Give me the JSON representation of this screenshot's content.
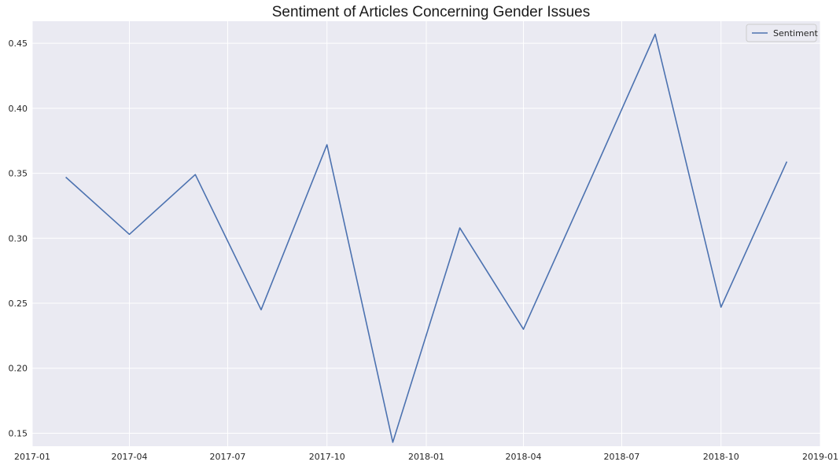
{
  "chart_data": {
    "type": "line",
    "title": "Sentiment of Articles Concerning Gender Issues",
    "xlabel": "",
    "ylabel": "",
    "x": [
      "2017-02-01",
      "2017-04-01",
      "2017-06-01",
      "2017-08-01",
      "2017-10-01",
      "2017-12-01",
      "2018-02-01",
      "2018-04-01",
      "2018-06-01",
      "2018-08-01",
      "2018-10-01",
      "2018-12-01"
    ],
    "series": [
      {
        "name": "Sentiment",
        "color": "#4c72b0",
        "values": [
          0.347,
          0.303,
          0.349,
          0.245,
          0.372,
          0.143,
          0.308,
          0.23,
          0.343,
          0.457,
          0.247,
          0.359
        ]
      }
    ],
    "xlim": [
      "2017-01-01",
      "2019-01-01"
    ],
    "ylim": [
      0.14,
      0.467
    ],
    "x_ticks": [
      {
        "date": "2017-01-01",
        "label": "2017-01"
      },
      {
        "date": "2017-04-01",
        "label": "2017-04"
      },
      {
        "date": "2017-07-01",
        "label": "2017-07"
      },
      {
        "date": "2017-10-01",
        "label": "2017-10"
      },
      {
        "date": "2018-01-01",
        "label": "2018-01"
      },
      {
        "date": "2018-04-01",
        "label": "2018-04"
      },
      {
        "date": "2018-07-01",
        "label": "2018-07"
      },
      {
        "date": "2018-10-01",
        "label": "2018-10"
      },
      {
        "date": "2019-01-01",
        "label": "2019-01"
      }
    ],
    "y_ticks": [
      {
        "value": 0.15,
        "label": "0.15"
      },
      {
        "value": 0.2,
        "label": "0.20"
      },
      {
        "value": 0.25,
        "label": "0.25"
      },
      {
        "value": 0.3,
        "label": "0.30"
      },
      {
        "value": 0.35,
        "label": "0.35"
      },
      {
        "value": 0.4,
        "label": "0.40"
      },
      {
        "value": 0.45,
        "label": "0.45"
      }
    ],
    "grid": true,
    "legend_position": "top-right",
    "background_color": "#eaeaf2",
    "grid_color": "#ffffff"
  }
}
